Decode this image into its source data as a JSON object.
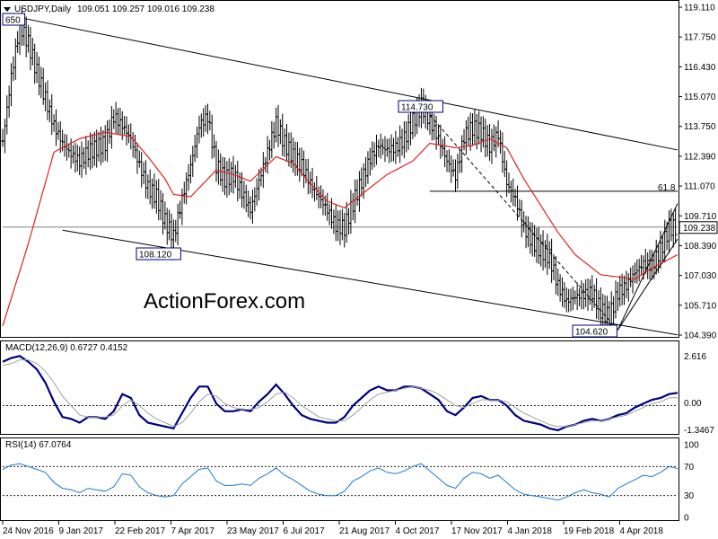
{
  "header": {
    "menu_icon": "triangle-down-icon",
    "symbol": "USDJPY,Daily",
    "ohlc": "109.051 109.257 109.016 109.238"
  },
  "watermark": "ActionForex.com",
  "colors": {
    "price": "#000000",
    "ma": "#e02020",
    "trend_lines": "#000000",
    "macd": "#000080",
    "signal": "#a0a0a0",
    "rsi": "#1e78d2",
    "current_price_line": "#808080",
    "watermark": "#d2d2d2"
  },
  "chart_data": [
    {
      "type": "candlestick",
      "title": "USDJPY,Daily",
      "ylim": [
        104.39,
        119.11
      ],
      "y_ticks": [
        "119.110",
        "117.750",
        "116.430",
        "115.070",
        "113.750",
        "112.390",
        "111.070",
        "109.710",
        "108.390",
        "107.030",
        "105.710",
        "104.390"
      ],
      "current_price": "109.238",
      "annotations": [
        "650",
        "114.730",
        "108.120",
        "104.620",
        "61.8"
      ],
      "close_path": [
        [
          0,
          113.1
        ],
        [
          1,
          116.0
        ],
        [
          2,
          118.3
        ],
        [
          3,
          117.5
        ],
        [
          4,
          116.2
        ],
        [
          5,
          115.0
        ],
        [
          6,
          113.8
        ],
        [
          7,
          113.0
        ],
        [
          8,
          112.5
        ],
        [
          9,
          112.2
        ],
        [
          10,
          112.6
        ],
        [
          11,
          112.8
        ],
        [
          12,
          113.0
        ],
        [
          13,
          114.2
        ],
        [
          14,
          113.8
        ],
        [
          15,
          113.2
        ],
        [
          16,
          112.0
        ],
        [
          17,
          111.0
        ],
        [
          18,
          110.6
        ],
        [
          19,
          109.5
        ],
        [
          20,
          108.8
        ],
        [
          21,
          110.5
        ],
        [
          22,
          112.0
        ],
        [
          23,
          113.8
        ],
        [
          24,
          114.2
        ],
        [
          25,
          112.0
        ],
        [
          26,
          111.4
        ],
        [
          27,
          111.6
        ],
        [
          28,
          110.8
        ],
        [
          29,
          110.0
        ],
        [
          30,
          111.3
        ],
        [
          31,
          112.6
        ],
        [
          32,
          113.9
        ],
        [
          33,
          113.0
        ],
        [
          34,
          112.4
        ],
        [
          35,
          112.0
        ],
        [
          36,
          111.2
        ],
        [
          37,
          110.6
        ],
        [
          38,
          110.0
        ],
        [
          39,
          109.3
        ],
        [
          40,
          109.2
        ],
        [
          41,
          110.3
        ],
        [
          42,
          111.3
        ],
        [
          43,
          112.3
        ],
        [
          44,
          112.9
        ],
        [
          45,
          112.7
        ],
        [
          46,
          112.8
        ],
        [
          47,
          113.2
        ],
        [
          48,
          114.0
        ],
        [
          49,
          114.7
        ],
        [
          50,
          114.0
        ],
        [
          51,
          113.2
        ],
        [
          52,
          112.2
        ],
        [
          53,
          111.5
        ],
        [
          54,
          113.3
        ],
        [
          55,
          113.7
        ],
        [
          56,
          113.5
        ],
        [
          57,
          112.9
        ],
        [
          58,
          113.4
        ],
        [
          59,
          111.2
        ],
        [
          60,
          110.5
        ],
        [
          61,
          109.2
        ],
        [
          62,
          108.6
        ],
        [
          63,
          108.2
        ],
        [
          64,
          107.9
        ],
        [
          65,
          106.6
        ],
        [
          66,
          105.9
        ],
        [
          67,
          106.1
        ],
        [
          68,
          106.2
        ],
        [
          69,
          106.3
        ],
        [
          70,
          105.5
        ],
        [
          71,
          105.2
        ],
        [
          72,
          106.3
        ],
        [
          73,
          106.6
        ],
        [
          74,
          107.2
        ],
        [
          75,
          107.6
        ],
        [
          76,
          107.5
        ],
        [
          77,
          108.2
        ],
        [
          78,
          109.2
        ],
        [
          79,
          109.24
        ]
      ],
      "ma_path": [
        [
          0,
          104.8
        ],
        [
          3,
          108.5
        ],
        [
          6,
          112.6
        ],
        [
          9,
          113.2
        ],
        [
          12,
          113.5
        ],
        [
          15,
          113.3
        ],
        [
          17,
          112.4
        ],
        [
          19,
          111.4
        ],
        [
          20,
          110.7
        ],
        [
          22,
          110.6
        ],
        [
          25,
          111.8
        ],
        [
          27,
          111.6
        ],
        [
          29,
          111.3
        ],
        [
          32,
          112.4
        ],
        [
          34,
          112.1
        ],
        [
          36,
          111.2
        ],
        [
          38,
          110.4
        ],
        [
          40,
          110.1
        ],
        [
          42,
          110.7
        ],
        [
          45,
          111.6
        ],
        [
          48,
          112.2
        ],
        [
          50,
          113.0
        ],
        [
          53,
          112.8
        ],
        [
          55,
          112.9
        ],
        [
          57,
          113.2
        ],
        [
          59,
          112.8
        ],
        [
          61,
          111.4
        ],
        [
          63,
          110.2
        ],
        [
          65,
          109.0
        ],
        [
          67,
          108.0
        ],
        [
          70,
          107.1
        ],
        [
          72,
          107.0
        ],
        [
          74,
          106.9
        ],
        [
          76,
          107.4
        ],
        [
          79,
          108.0
        ]
      ],
      "trendlines": [
        {
          "name": "upper-channel",
          "from": [
            0,
            118.8
          ],
          "to": [
            79,
            112.7
          ]
        },
        {
          "name": "lower-channel",
          "from": [
            7,
            109.1
          ],
          "to": [
            79,
            104.4
          ]
        },
        {
          "name": "decline-dashed",
          "from": [
            49,
            114.7
          ],
          "to": [
            72,
            104.62
          ]
        },
        {
          "name": "rising-upper",
          "from": [
            72,
            104.62
          ],
          "to": [
            79,
            110.3
          ]
        },
        {
          "name": "rising-lower",
          "from": [
            72,
            104.62
          ],
          "to": [
            79,
            108.7
          ]
        },
        {
          "name": "fib-61.8",
          "from": [
            50,
            110.85
          ],
          "to": [
            79,
            110.85
          ]
        }
      ]
    },
    {
      "type": "line",
      "title": "MACD(12,26,9) 0.6727 0.4152",
      "ylim": [
        -1.3467,
        2.616
      ],
      "y_ticks": [
        "2.616",
        "0.00",
        "-1.3467"
      ],
      "series": [
        {
          "name": "MACD",
          "values": [
            2.3,
            2.5,
            2.6,
            2.3,
            1.9,
            1.2,
            0.2,
            -0.6,
            -0.7,
            -0.9,
            -0.6,
            -0.6,
            -0.7,
            -0.3,
            0.6,
            0.4,
            -0.5,
            -0.9,
            -1.0,
            -1.1,
            -1.2,
            -0.4,
            0.4,
            1.0,
            1.0,
            0.1,
            -0.3,
            -0.3,
            -0.2,
            -0.3,
            0.2,
            0.6,
            1.1,
            0.6,
            0.0,
            -0.5,
            -0.7,
            -0.8,
            -0.9,
            -0.9,
            -0.6,
            0.0,
            0.4,
            0.8,
            1.0,
            0.8,
            0.8,
            1.0,
            1.0,
            0.9,
            0.6,
            0.3,
            -0.3,
            -0.5,
            -0.1,
            0.4,
            0.5,
            0.3,
            0.3,
            0.0,
            -0.5,
            -0.8,
            -0.9,
            -1.0,
            -1.2,
            -1.3,
            -1.1,
            -1.0,
            -0.8,
            -0.7,
            -0.8,
            -0.7,
            -0.5,
            -0.4,
            -0.1,
            0.1,
            0.3,
            0.4,
            0.6,
            0.67
          ]
        },
        {
          "name": "Signal",
          "values": [
            2.1,
            2.2,
            2.4,
            2.4,
            2.2,
            1.8,
            1.2,
            0.5,
            0.0,
            -0.5,
            -0.6,
            -0.6,
            -0.6,
            -0.5,
            0.0,
            0.3,
            0.0,
            -0.4,
            -0.7,
            -0.9,
            -1.1,
            -0.9,
            -0.4,
            0.2,
            0.6,
            0.5,
            0.1,
            -0.1,
            -0.2,
            -0.2,
            -0.1,
            0.2,
            0.6,
            0.7,
            0.4,
            0.0,
            -0.3,
            -0.6,
            -0.7,
            -0.8,
            -0.8,
            -0.5,
            -0.1,
            0.3,
            0.6,
            0.7,
            0.8,
            0.9,
            1.0,
            0.9,
            0.8,
            0.6,
            0.3,
            0.0,
            -0.1,
            0.1,
            0.3,
            0.3,
            0.3,
            0.2,
            -0.1,
            -0.4,
            -0.6,
            -0.8,
            -1.0,
            -1.1,
            -1.1,
            -1.0,
            -0.9,
            -0.8,
            -0.8,
            -0.7,
            -0.6,
            -0.5,
            -0.3,
            -0.1,
            0.1,
            0.2,
            0.4,
            0.42
          ]
        }
      ]
    },
    {
      "type": "line",
      "title": "RSI(14) 67.0764",
      "ylim": [
        0,
        100
      ],
      "y_ticks": [
        "100",
        "70",
        "30",
        "0"
      ],
      "levels": [
        70,
        30
      ],
      "series": [
        {
          "name": "RSI",
          "values": [
            66,
            72,
            74,
            70,
            66,
            62,
            48,
            40,
            38,
            34,
            40,
            38,
            36,
            42,
            60,
            58,
            42,
            34,
            30,
            28,
            30,
            46,
            56,
            66,
            68,
            50,
            44,
            44,
            46,
            44,
            54,
            60,
            68,
            58,
            52,
            44,
            36,
            32,
            30,
            30,
            36,
            50,
            56,
            64,
            68,
            62,
            60,
            64,
            70,
            74,
            64,
            54,
            44,
            40,
            54,
            62,
            60,
            54,
            58,
            48,
            38,
            32,
            30,
            28,
            26,
            24,
            28,
            34,
            38,
            34,
            32,
            28,
            40,
            46,
            52,
            58,
            56,
            62,
            70,
            67.08
          ]
        }
      ]
    }
  ],
  "x_axis": {
    "labels": [
      "24 Nov 2016",
      "9 Jan 2017",
      "22 Feb 2017",
      "7 Apr 2017",
      "23 May 2017",
      "6 Jul 2017",
      "21 Aug 2017",
      "4 Oct 2017",
      "17 Nov 2017",
      "4 Jan 2018",
      "19 Feb 2018",
      "4 Apr 2018"
    ],
    "label_positions": [
      0,
      8,
      16,
      24,
      32,
      40,
      48,
      56,
      64,
      72,
      80,
      88
    ]
  }
}
